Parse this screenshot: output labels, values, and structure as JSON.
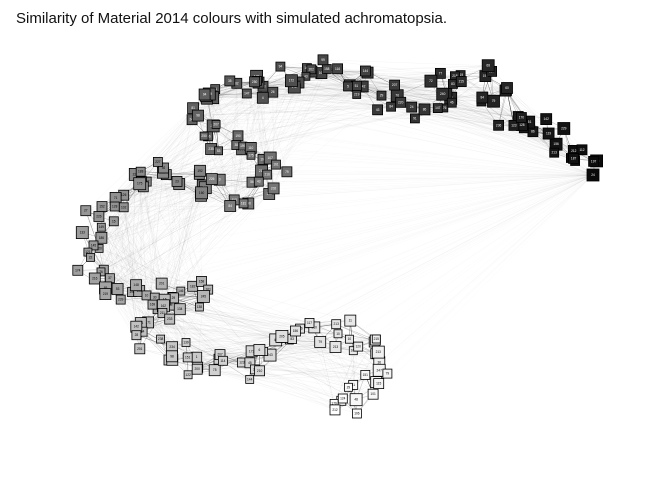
{
  "title": "Similarity of Material 2014 colours with simulated achromatopsia.",
  "node_label_text": "##",
  "colors": {
    "background": "#ffffff",
    "edge": "#000000",
    "node_stroke": "#000000",
    "darkest_node": "#0a0a0a",
    "lightest_node": "#ffffff"
  }
}
